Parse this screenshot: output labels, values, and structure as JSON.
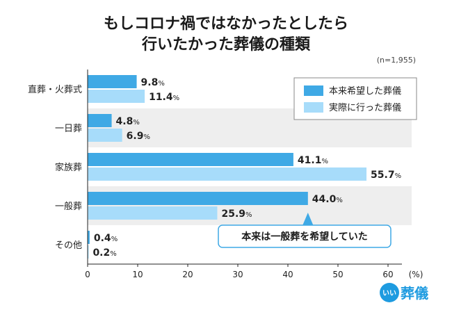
{
  "header": {
    "title_line1": "もしコロナ禍ではなかったとしたら",
    "title_line2": "行いたかった葬儀の種類",
    "sample": "(n=1,955)"
  },
  "colors": {
    "series1": "#3fa9e5",
    "series2": "#a7dcfa",
    "band": "#eeeeee",
    "callout_border": "#3fa9e5"
  },
  "chart_data": {
    "type": "bar",
    "orientation": "horizontal",
    "categories": [
      "直葬・火葬式",
      "一日葬",
      "家族葬",
      "一般葬",
      "その他"
    ],
    "series": [
      {
        "name": "本来希望した葬儀",
        "values": [
          9.8,
          4.8,
          41.1,
          44.0,
          0.4
        ]
      },
      {
        "name": "実際に行った葬儀",
        "values": [
          11.4,
          6.9,
          55.7,
          25.9,
          0.2
        ]
      }
    ],
    "value_labels": [
      [
        "9.8",
        "4.8",
        "41.1",
        "44.0",
        "0.4"
      ],
      [
        "11.4",
        "6.9",
        "55.7",
        "25.9",
        "0.2"
      ]
    ],
    "value_unit": "%",
    "xlim": [
      0,
      60
    ],
    "xticks": [
      "0",
      "10",
      "20",
      "30",
      "40",
      "50",
      "60"
    ],
    "xunit": "(%)",
    "legend_position": "top-right",
    "annotation": {
      "text": "本来は一般葬を希望していた",
      "category_index": 3,
      "value": 44.0
    }
  },
  "brand": {
    "badge": "いい",
    "name": "葬儀"
  }
}
